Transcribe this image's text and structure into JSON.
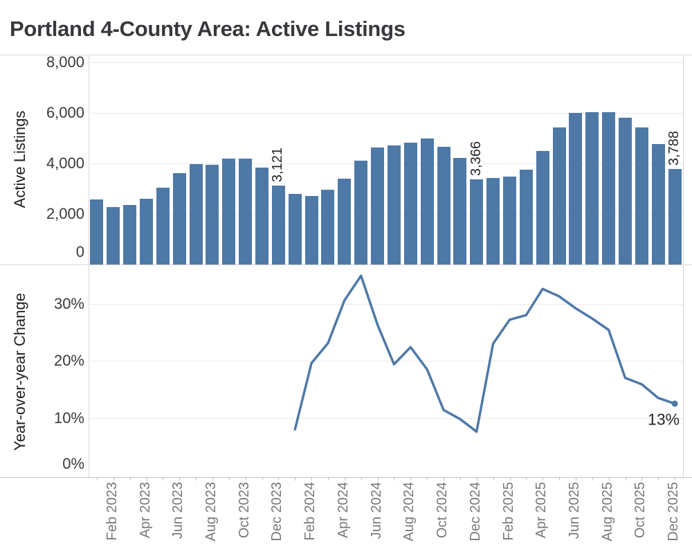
{
  "title": "Portland 4-County Area: Active Listings",
  "colors": {
    "bar": "#4e79a7",
    "line": "#4e79a7",
    "gridline": "#e9e9e9",
    "panel_border": "#d8d8d8",
    "axis_line": "#c2c2c2",
    "tick_label": "#3a3a3a",
    "month_label": "#787878",
    "annotation": "#262626",
    "title": "#36383c"
  },
  "x_axis": {
    "labels": [
      "Feb 2023",
      "Apr 2023",
      "Jun 2023",
      "Aug 2023",
      "Oct 2023",
      "Dec 2023",
      "Feb 2024",
      "Apr 2024",
      "Jun 2024",
      "Aug 2024",
      "Oct 2024",
      "Dec 2024",
      "Feb 2025",
      "Apr 2025",
      "Jun 2025",
      "Aug 2025",
      "Oct 2025",
      "Dec 2025"
    ],
    "tick_every_month": true
  },
  "chart_data": [
    {
      "type": "bar",
      "title": "Portland 4-County Area: Active Listings",
      "ylabel": "Active Listings",
      "xlabel": "",
      "ylim": [
        0,
        8300
      ],
      "grid": true,
      "categories": [
        "Jan 2023",
        "Feb 2023",
        "Mar 2023",
        "Apr 2023",
        "May 2023",
        "Jun 2023",
        "Jul 2023",
        "Aug 2023",
        "Sep 2023",
        "Oct 2023",
        "Nov 2023",
        "Dec 2023",
        "Jan 2024",
        "Feb 2024",
        "Mar 2024",
        "Apr 2024",
        "May 2024",
        "Jun 2024",
        "Jul 2024",
        "Aug 2024",
        "Sep 2024",
        "Oct 2024",
        "Nov 2024",
        "Dec 2024",
        "Jan 2025",
        "Feb 2025",
        "Mar 2025",
        "Apr 2025",
        "May 2025",
        "Jun 2025",
        "Jul 2025",
        "Aug 2025",
        "Sep 2025",
        "Oct 2025",
        "Nov 2025",
        "Dec 2025"
      ],
      "values": [
        2580,
        2260,
        2350,
        2600,
        3040,
        3620,
        3960,
        3940,
        4200,
        4200,
        3830,
        3121,
        2790,
        2720,
        2950,
        3390,
        4120,
        4630,
        4720,
        4810,
        4980,
        4670,
        4210,
        3366,
        3430,
        3480,
        3760,
        4490,
        5430,
        5990,
        6020,
        6040,
        5820,
        5420,
        4770,
        3788
      ],
      "yticks": [
        {
          "value": 0,
          "label": "0"
        },
        {
          "value": 2000,
          "label": "2,000"
        },
        {
          "value": 4000,
          "label": "4,000"
        },
        {
          "value": 6000,
          "label": "6,000"
        },
        {
          "value": 8000,
          "label": "8,000"
        }
      ],
      "annotations": [
        {
          "category": "Dec 2023",
          "label": "3,121"
        },
        {
          "category": "Dec 2024",
          "label": "3,366"
        },
        {
          "category": "Dec 2025",
          "label": "3,788"
        }
      ]
    },
    {
      "type": "line",
      "title": "",
      "ylabel": "Year-over-year Change",
      "xlabel": "",
      "ylim": [
        0,
        36.5
      ],
      "grid": true,
      "unit": "%",
      "categories": [
        "Jan 2023",
        "Feb 2023",
        "Mar 2023",
        "Apr 2023",
        "May 2023",
        "Jun 2023",
        "Jul 2023",
        "Aug 2023",
        "Sep 2023",
        "Oct 2023",
        "Nov 2023",
        "Dec 2023",
        "Jan 2024",
        "Feb 2024",
        "Mar 2024",
        "Apr 2024",
        "May 2024",
        "Jun 2024",
        "Jul 2024",
        "Aug 2024",
        "Sep 2024",
        "Oct 2024",
        "Nov 2024",
        "Dec 2024",
        "Jan 2025",
        "Feb 2025",
        "Mar 2025",
        "Apr 2025",
        "May 2025",
        "Jun 2025",
        "Jul 2025",
        "Aug 2025",
        "Sep 2025",
        "Oct 2025",
        "Nov 2025",
        "Dec 2025"
      ],
      "values": [
        null,
        null,
        null,
        null,
        null,
        null,
        null,
        null,
        null,
        null,
        null,
        null,
        8.0,
        19.6,
        23.1,
        30.6,
        34.9,
        26.3,
        19.4,
        22.4,
        18.5,
        11.4,
        9.8,
        7.6,
        23.0,
        27.2,
        28.0,
        32.6,
        31.3,
        29.2,
        27.4,
        25.4,
        17.0,
        15.9,
        13.5,
        12.5
      ],
      "yticks": [
        {
          "value": 0,
          "label": "0%"
        },
        {
          "value": 10,
          "label": "10%"
        },
        {
          "value": 20,
          "label": "20%"
        },
        {
          "value": 30,
          "label": "30%"
        }
      ],
      "annotations": [
        {
          "category": "Dec 2025",
          "label": "13%"
        }
      ]
    }
  ]
}
